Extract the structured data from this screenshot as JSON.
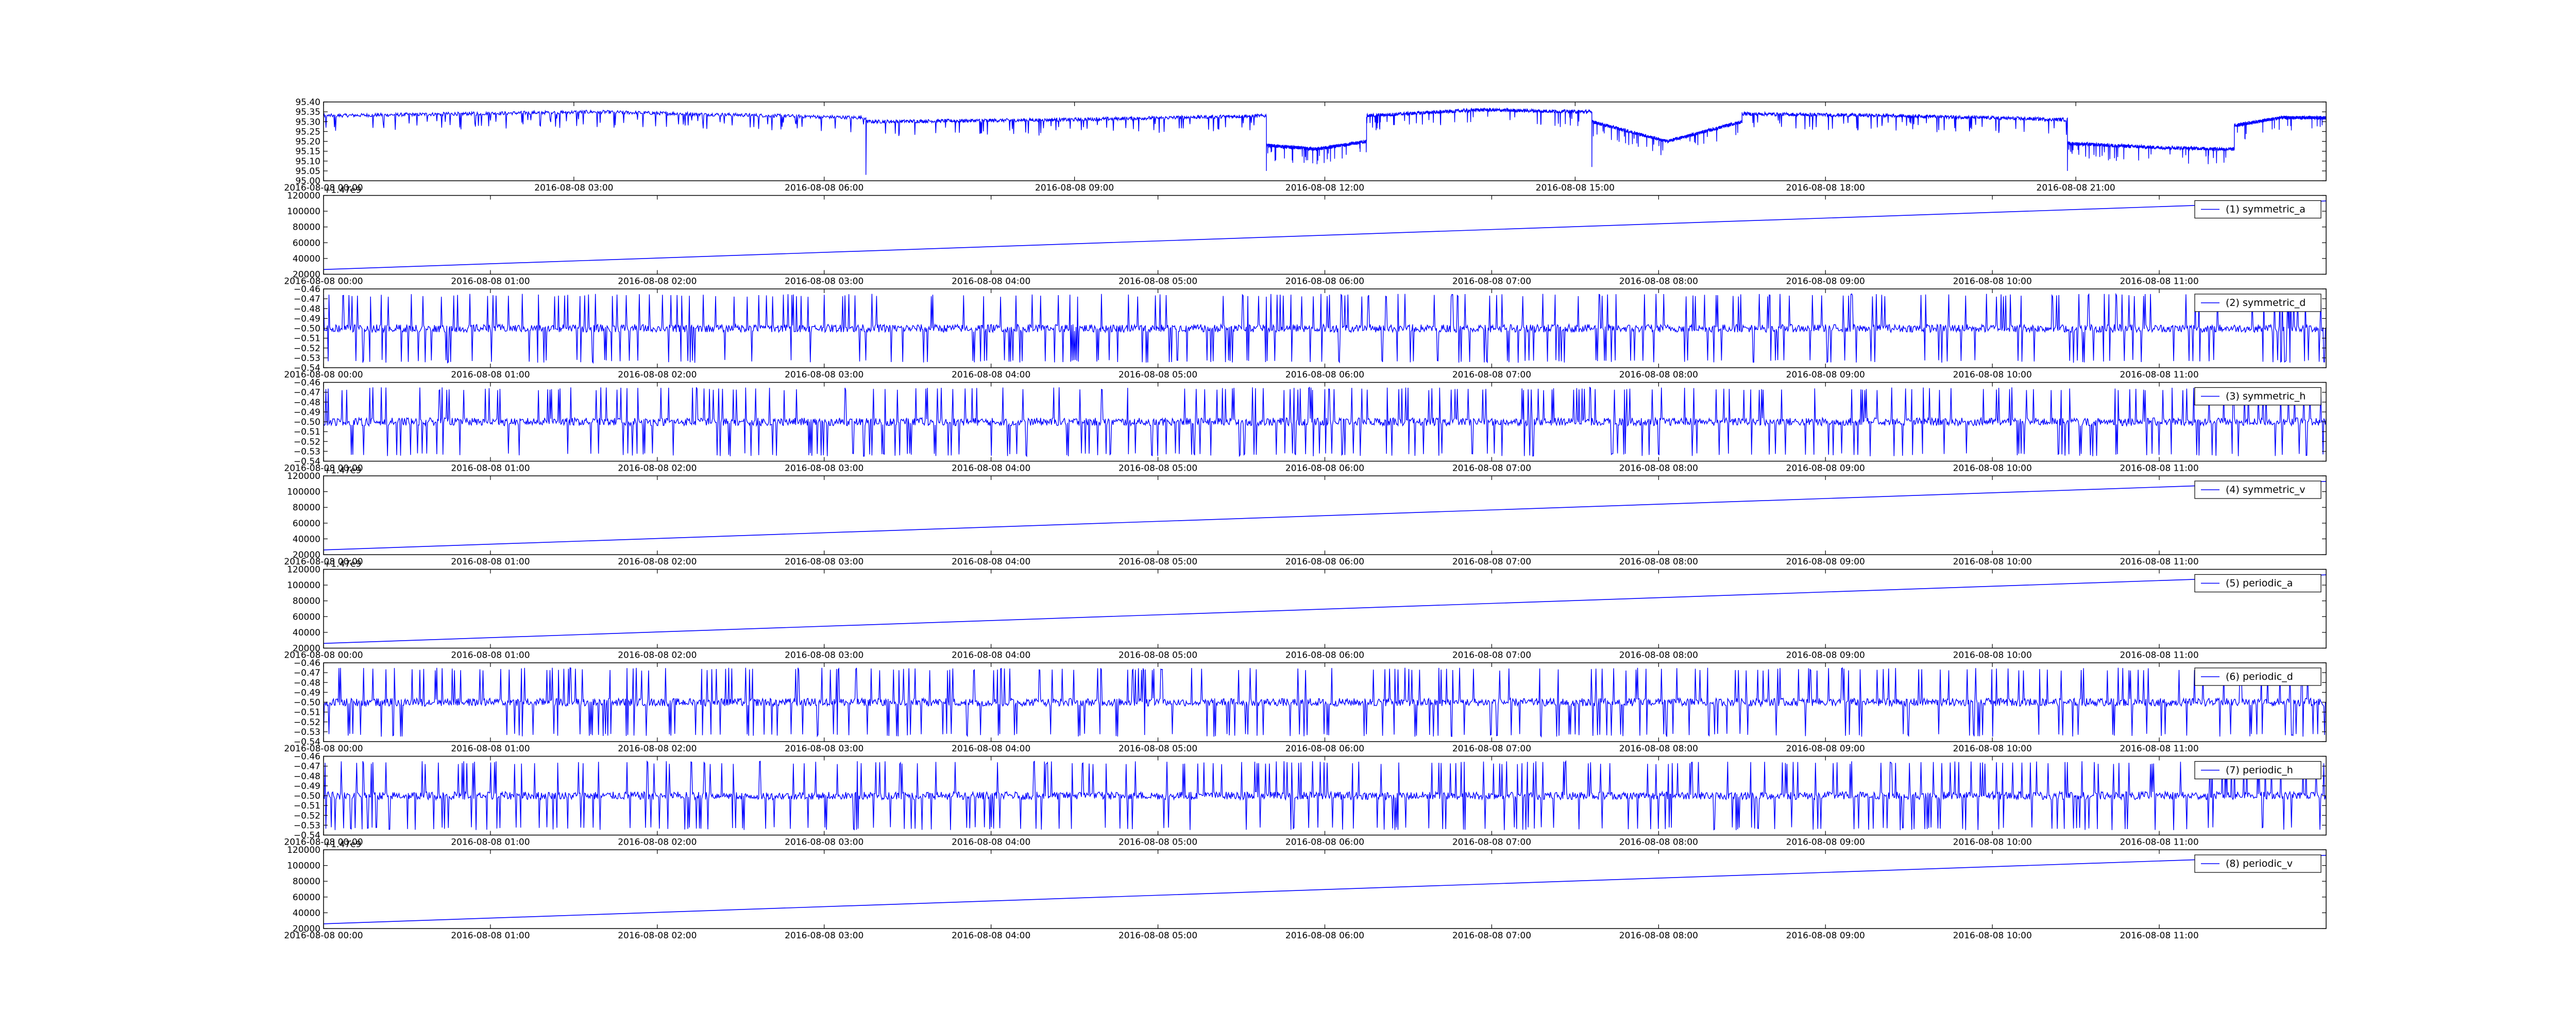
{
  "figure": {
    "background": "#ffffff",
    "line_color": "#0000ff",
    "axis_color": "#000000"
  },
  "chart_data": [
    {
      "type": "line",
      "grid": false,
      "yticks": [
        "95.00",
        "95.05",
        "95.10",
        "95.15",
        "95.20",
        "95.25",
        "95.30",
        "95.35",
        "95.40"
      ],
      "ylim": [
        95.0,
        95.4
      ],
      "xticks": [
        "2016-08-08 00:00",
        "2016-08-08 03:00",
        "2016-08-08 06:00",
        "2016-08-08 09:00",
        "2016-08-08 12:00",
        "2016-08-08 15:00",
        "2016-08-08 18:00",
        "2016-08-08 21:00"
      ],
      "xlim_hours": [
        0,
        24
      ],
      "series": [
        {
          "segments": [
            {
              "start_h": 0.0,
              "end_h": 6.5,
              "base": [
                95.33,
                95.35,
                95.32
              ],
              "dips": 80
            },
            {
              "start_h": 6.5,
              "end_h": 11.3,
              "base": [
                95.3,
                95.31,
                95.33
              ],
              "dips": 60
            },
            {
              "start_h": 11.3,
              "end_h": 12.5,
              "base": [
                95.18,
                95.16,
                95.2
              ],
              "dips": 30
            },
            {
              "start_h": 12.5,
              "end_h": 15.2,
              "base": [
                95.33,
                95.36,
                95.35
              ],
              "dips": 40
            },
            {
              "start_h": 15.2,
              "end_h": 17.0,
              "base": [
                95.3,
                95.2,
                95.3
              ],
              "dips": 30
            },
            {
              "start_h": 17.0,
              "end_h": 20.9,
              "base": [
                95.34,
                95.33,
                95.31
              ],
              "dips": 55
            },
            {
              "start_h": 20.9,
              "end_h": 22.9,
              "base": [
                95.19,
                95.17,
                95.16
              ],
              "dips": 35
            },
            {
              "start_h": 22.9,
              "end_h": 24.0,
              "base": [
                95.28,
                95.32,
                95.32
              ],
              "dips": 15
            }
          ],
          "deep_spikes": [
            {
              "h": 6.5,
              "y": 95.03
            },
            {
              "h": 11.3,
              "y": 95.05
            },
            {
              "h": 15.2,
              "y": 95.07
            },
            {
              "h": 20.9,
              "y": 95.05
            }
          ]
        }
      ]
    },
    {
      "type": "line",
      "grid": false,
      "offset_text": "+1.47e9",
      "yticks": [
        "20000",
        "40000",
        "60000",
        "80000",
        "100000",
        "120000"
      ],
      "ylim": [
        20000,
        120000
      ],
      "xticks": [
        "2016-08-08 00:00",
        "2016-08-08 01:00",
        "2016-08-08 02:00",
        "2016-08-08 03:00",
        "2016-08-08 04:00",
        "2016-08-08 05:00",
        "2016-08-08 06:00",
        "2016-08-08 07:00",
        "2016-08-08 08:00",
        "2016-08-08 09:00",
        "2016-08-08 10:00",
        "2016-08-08 11:00"
      ],
      "xlim_hours": [
        0,
        12
      ],
      "legend_position": "top-right",
      "series": [
        {
          "name": "(1) symmetric_a",
          "points": [
            [
              0,
              26000
            ],
            [
              12,
              113000
            ]
          ]
        }
      ]
    },
    {
      "type": "line",
      "grid": false,
      "yticks": [
        "-0.54",
        "-0.53",
        "-0.52",
        "-0.51",
        "-0.50",
        "-0.49",
        "-0.48",
        "-0.47",
        "-0.46"
      ],
      "ylim": [
        -0.54,
        -0.46
      ],
      "xticks": [
        "2016-08-08 00:00",
        "2016-08-08 01:00",
        "2016-08-08 02:00",
        "2016-08-08 03:00",
        "2016-08-08 04:00",
        "2016-08-08 05:00",
        "2016-08-08 06:00",
        "2016-08-08 07:00",
        "2016-08-08 08:00",
        "2016-08-08 09:00",
        "2016-08-08 10:00",
        "2016-08-08 11:00"
      ],
      "xlim_hours": [
        0,
        12
      ],
      "legend_position": "top-right",
      "series": [
        {
          "name": "(2) symmetric_d",
          "baseline": -0.5,
          "noise": 0.004,
          "spike_high": -0.468,
          "spike_low": -0.532,
          "spikes": 420
        }
      ]
    },
    {
      "type": "line",
      "grid": false,
      "yticks": [
        "-0.54",
        "-0.53",
        "-0.52",
        "-0.51",
        "-0.50",
        "-0.49",
        "-0.48",
        "-0.47",
        "-0.46"
      ],
      "ylim": [
        -0.54,
        -0.46
      ],
      "xticks": [
        "2016-08-08 00:00",
        "2016-08-08 01:00",
        "2016-08-08 02:00",
        "2016-08-08 03:00",
        "2016-08-08 04:00",
        "2016-08-08 05:00",
        "2016-08-08 06:00",
        "2016-08-08 07:00",
        "2016-08-08 08:00",
        "2016-08-08 09:00",
        "2016-08-08 10:00",
        "2016-08-08 11:00"
      ],
      "xlim_hours": [
        0,
        12
      ],
      "legend_position": "top-right",
      "series": [
        {
          "name": "(3) symmetric_h",
          "baseline": -0.5,
          "noise": 0.004,
          "spike_high": -0.468,
          "spike_low": -0.532,
          "spikes": 420
        }
      ]
    },
    {
      "type": "line",
      "grid": false,
      "offset_text": "+1.47e9",
      "yticks": [
        "20000",
        "40000",
        "60000",
        "80000",
        "100000",
        "120000"
      ],
      "ylim": [
        20000,
        120000
      ],
      "xticks": [
        "2016-08-08 00:00",
        "2016-08-08 01:00",
        "2016-08-08 02:00",
        "2016-08-08 03:00",
        "2016-08-08 04:00",
        "2016-08-08 05:00",
        "2016-08-08 06:00",
        "2016-08-08 07:00",
        "2016-08-08 08:00",
        "2016-08-08 09:00",
        "2016-08-08 10:00",
        "2016-08-08 11:00"
      ],
      "xlim_hours": [
        0,
        12
      ],
      "legend_position": "top-right",
      "series": [
        {
          "name": "(4) symmetric_v",
          "points": [
            [
              0,
              26000
            ],
            [
              12,
              113000
            ]
          ]
        }
      ]
    },
    {
      "type": "line",
      "grid": false,
      "offset_text": "+1.47e9",
      "yticks": [
        "20000",
        "40000",
        "60000",
        "80000",
        "100000",
        "120000"
      ],
      "ylim": [
        20000,
        120000
      ],
      "xticks": [
        "2016-08-08 00:00",
        "2016-08-08 01:00",
        "2016-08-08 02:00",
        "2016-08-08 03:00",
        "2016-08-08 04:00",
        "2016-08-08 05:00",
        "2016-08-08 06:00",
        "2016-08-08 07:00",
        "2016-08-08 08:00",
        "2016-08-08 09:00",
        "2016-08-08 10:00",
        "2016-08-08 11:00"
      ],
      "xlim_hours": [
        0,
        12
      ],
      "legend_position": "top-right",
      "series": [
        {
          "name": "(5) periodic_a",
          "points": [
            [
              0,
              26000
            ],
            [
              12,
              113000
            ]
          ]
        }
      ]
    },
    {
      "type": "line",
      "grid": false,
      "yticks": [
        "-0.54",
        "-0.53",
        "-0.52",
        "-0.51",
        "-0.50",
        "-0.49",
        "-0.48",
        "-0.47",
        "-0.46"
      ],
      "ylim": [
        -0.54,
        -0.46
      ],
      "xticks": [
        "2016-08-08 00:00",
        "2016-08-08 01:00",
        "2016-08-08 02:00",
        "2016-08-08 03:00",
        "2016-08-08 04:00",
        "2016-08-08 05:00",
        "2016-08-08 06:00",
        "2016-08-08 07:00",
        "2016-08-08 08:00",
        "2016-08-08 09:00",
        "2016-08-08 10:00",
        "2016-08-08 11:00"
      ],
      "xlim_hours": [
        0,
        12
      ],
      "legend_position": "top-right",
      "series": [
        {
          "name": "(6) periodic_d",
          "baseline": -0.5,
          "noise": 0.004,
          "spike_high": -0.468,
          "spike_low": -0.532,
          "spikes": 420
        }
      ]
    },
    {
      "type": "line",
      "grid": false,
      "yticks": [
        "-0.54",
        "-0.53",
        "-0.52",
        "-0.51",
        "-0.50",
        "-0.49",
        "-0.48",
        "-0.47",
        "-0.46"
      ],
      "ylim": [
        -0.54,
        -0.46
      ],
      "xticks": [
        "2016-08-08 00:00",
        "2016-08-08 01:00",
        "2016-08-08 02:00",
        "2016-08-08 03:00",
        "2016-08-08 04:00",
        "2016-08-08 05:00",
        "2016-08-08 06:00",
        "2016-08-08 07:00",
        "2016-08-08 08:00",
        "2016-08-08 09:00",
        "2016-08-08 10:00",
        "2016-08-08 11:00"
      ],
      "xlim_hours": [
        0,
        12
      ],
      "legend_position": "top-right",
      "series": [
        {
          "name": "(7) periodic_h",
          "baseline": -0.5,
          "noise": 0.004,
          "spike_high": -0.468,
          "spike_low": -0.532,
          "spikes": 420
        }
      ]
    },
    {
      "type": "line",
      "grid": false,
      "offset_text": "+1.47e9",
      "yticks": [
        "20000",
        "40000",
        "60000",
        "80000",
        "100000",
        "120000"
      ],
      "ylim": [
        20000,
        120000
      ],
      "xticks": [
        "2016-08-08 00:00",
        "2016-08-08 01:00",
        "2016-08-08 02:00",
        "2016-08-08 03:00",
        "2016-08-08 04:00",
        "2016-08-08 05:00",
        "2016-08-08 06:00",
        "2016-08-08 07:00",
        "2016-08-08 08:00",
        "2016-08-08 09:00",
        "2016-08-08 10:00",
        "2016-08-08 11:00"
      ],
      "xlim_hours": [
        0,
        12
      ],
      "legend_position": "top-right",
      "series": [
        {
          "name": "(8) periodic_v",
          "points": [
            [
              0,
              26000
            ],
            [
              12,
              113000
            ]
          ]
        }
      ]
    }
  ]
}
